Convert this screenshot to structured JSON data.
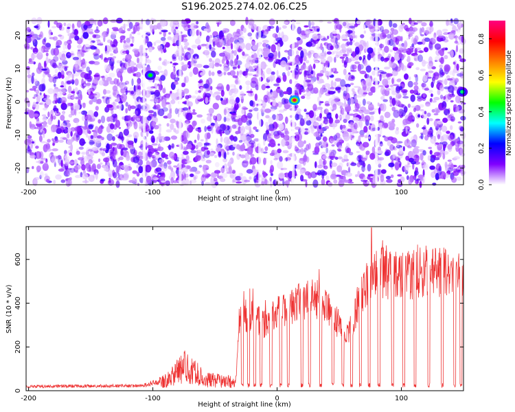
{
  "title": "S196.2025.274.02.06.C25",
  "chart_data": [
    {
      "type": "heatmap",
      "xlabel": "Height of straight line (km)",
      "ylabel": "Frequency (Hz)",
      "xlim": [
        -202,
        150
      ],
      "ylim": [
        -25,
        24.5
      ],
      "xticks": [
        -200,
        -100,
        0,
        100
      ],
      "yticks": [
        -20,
        -10,
        0,
        10,
        20
      ],
      "colorbar": {
        "label": "Normalized spectral amplitude",
        "range": [
          0,
          0.9
        ],
        "ticks": [
          "0.0",
          "0.2",
          "0.4",
          "0.6",
          "0.8"
        ],
        "tick_values": [
          0,
          0.2,
          0.4,
          0.6,
          0.8
        ],
        "colors": [
          "#ffffff",
          "#8000ff",
          "#0000ff",
          "#00ffff",
          "#00ff00",
          "#ffff00",
          "#ff8000",
          "#ff0000",
          "#ff0080"
        ]
      },
      "peaks": [
        {
          "x": -102,
          "y": 8,
          "amplitude": 0.45
        },
        {
          "x": 14,
          "y": 0.5,
          "amplitude": 0.85
        },
        {
          "x": 149,
          "y": 3,
          "amplitude": 0.4
        }
      ],
      "background_amplitude_range": [
        0.02,
        0.18
      ],
      "empty_columns_x": [
        -107,
        -78,
        -14,
        13,
        80
      ]
    },
    {
      "type": "line",
      "xlabel": "Height of straight line (km)",
      "ylabel": "SNR (10 * v/v)",
      "xlim": [
        -202,
        150
      ],
      "ylim": [
        0,
        750
      ],
      "xticks": [
        -200,
        -100,
        0,
        100
      ],
      "yticks": [
        0,
        200,
        400,
        600
      ],
      "color": "#ee3333",
      "series_envelope": [
        {
          "x": -202,
          "y": 20
        },
        {
          "x": -110,
          "y": 22
        },
        {
          "x": -90,
          "y": 45
        },
        {
          "x": -75,
          "y": 110
        },
        {
          "x": -65,
          "y": 80
        },
        {
          "x": -58,
          "y": 50
        },
        {
          "x": -33,
          "y": 40
        },
        {
          "x": -31,
          "y": 310
        },
        {
          "x": -20,
          "y": 350
        },
        {
          "x": -10,
          "y": 300
        },
        {
          "x": 0,
          "y": 360
        },
        {
          "x": 10,
          "y": 380
        },
        {
          "x": 20,
          "y": 410
        },
        {
          "x": 30,
          "y": 430
        },
        {
          "x": 40,
          "y": 380
        },
        {
          "x": 50,
          "y": 300
        },
        {
          "x": 55,
          "y": 240
        },
        {
          "x": 60,
          "y": 300
        },
        {
          "x": 66,
          "y": 420
        },
        {
          "x": 70,
          "y": 480
        },
        {
          "x": 80,
          "y": 550
        },
        {
          "x": 90,
          "y": 530
        },
        {
          "x": 100,
          "y": 520
        },
        {
          "x": 110,
          "y": 530
        },
        {
          "x": 120,
          "y": 545
        },
        {
          "x": 130,
          "y": 540
        },
        {
          "x": 140,
          "y": 530
        },
        {
          "x": 150,
          "y": 540
        }
      ],
      "dips_x": [
        -28,
        -23,
        -18,
        -13,
        -5,
        3,
        9,
        20,
        26,
        35,
        45,
        53,
        60,
        67,
        74,
        82,
        93,
        102,
        111,
        122,
        133,
        143,
        148
      ],
      "max_peak": {
        "x": 76,
        "y": 745
      }
    }
  ]
}
